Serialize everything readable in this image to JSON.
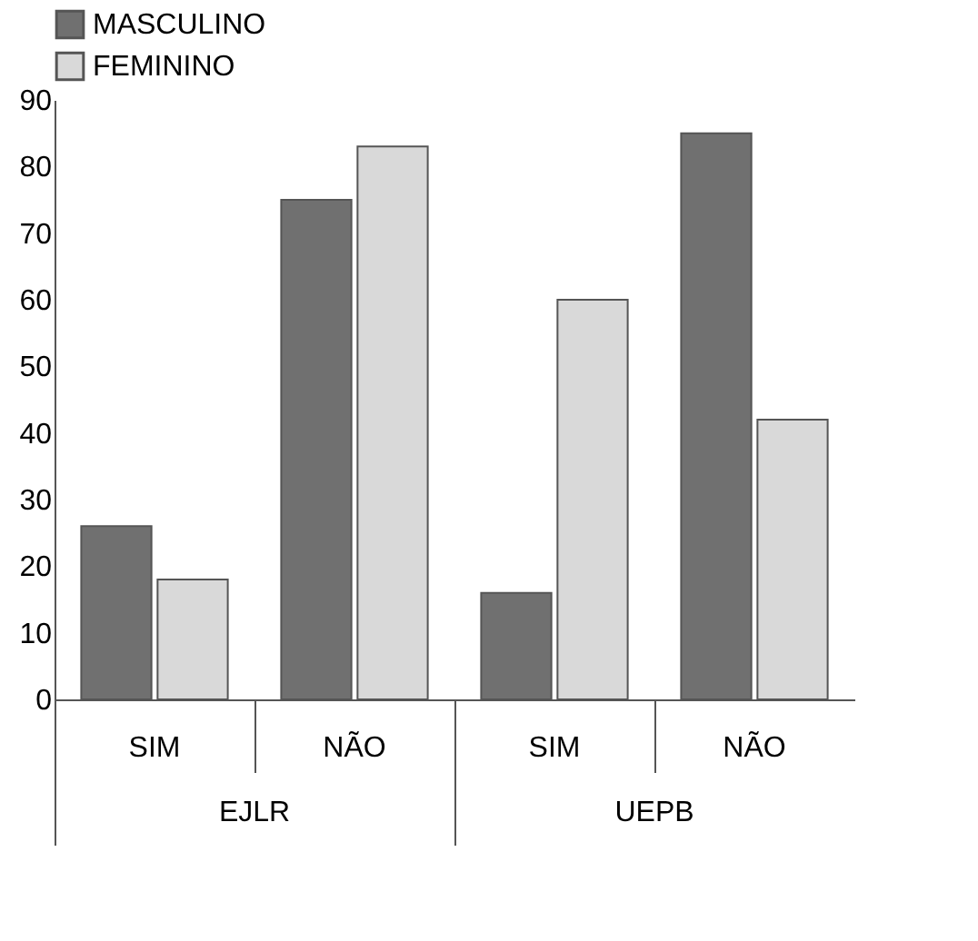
{
  "chart_data": {
    "type": "bar",
    "categories": [
      "SIM",
      "NÃO",
      "SIM",
      "NÃO"
    ],
    "series": [
      {
        "name": "MASCULINO",
        "color": "#707070",
        "values": [
          26,
          75,
          16,
          85
        ]
      },
      {
        "name": "FEMININO",
        "color": "#d9d9d9",
        "values": [
          18,
          83,
          60,
          42
        ]
      }
    ],
    "annotations": [
      "EJLR",
      "UEPB"
    ],
    "ylim": [
      0,
      90
    ],
    "yticks": [
      0,
      10,
      20,
      30,
      40,
      50,
      60,
      70,
      80,
      90
    ],
    "grid": false,
    "legend": "top left"
  }
}
